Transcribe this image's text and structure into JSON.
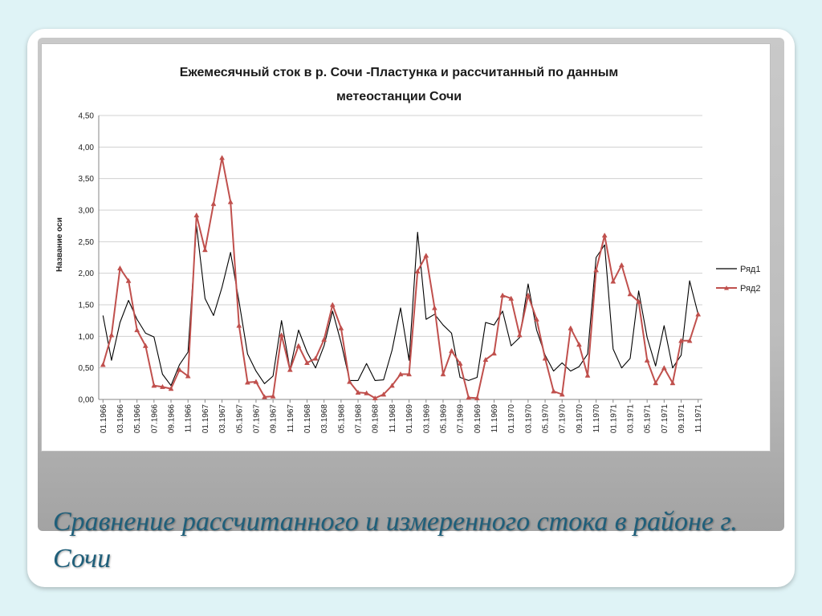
{
  "slide": {
    "caption": "Сравнение рассчитанного и измеренного стока в районе г. Сочи"
  },
  "chart_data": {
    "type": "line",
    "title_lines": [
      "Ежемесячный сток в р. Сочи -Пластунка и рассчитанный по данным",
      "метеостанции Сочи"
    ],
    "ylabel": "Название оси",
    "xlabel": "",
    "ylim": [
      0,
      4.5
    ],
    "yticks": [
      "0,00",
      "0,50",
      "1,00",
      "1,50",
      "2,00",
      "2,50",
      "3,00",
      "3,50",
      "4,00",
      "4,50"
    ],
    "grid": "horizontal",
    "legend_position": "right",
    "x_tick_labels": [
      "01.1966",
      "03.1966",
      "05.1966",
      "07.1966",
      "09.1966",
      "11.1966",
      "01.1967",
      "03.1967",
      "05.1967",
      "07.1967",
      "09.1967",
      "11.1967",
      "01.1968",
      "03.1968",
      "05.1968",
      "07.1968",
      "09.1968",
      "11.1968",
      "01.1969",
      "03.1969",
      "05.1969",
      "07.1969",
      "09.1969",
      "11.1969",
      "01.1970",
      "03.1970",
      "05.1970",
      "07.1970",
      "09.1970",
      "11.1970",
      "01.1971",
      "03.1971",
      "05.1971",
      "07.1971",
      "09.1971",
      "11.1971"
    ],
    "series": [
      {
        "name": "Ряд1",
        "color": "#000000",
        "marker": "none",
        "values": [
          1.33,
          0.62,
          1.22,
          1.57,
          1.27,
          1.05,
          0.99,
          0.4,
          0.22,
          0.55,
          0.75,
          2.75,
          1.6,
          1.33,
          1.78,
          2.33,
          1.55,
          0.72,
          0.45,
          0.25,
          0.37,
          1.25,
          0.48,
          1.1,
          0.75,
          0.5,
          0.85,
          1.4,
          0.9,
          0.3,
          0.3,
          0.57,
          0.3,
          0.31,
          0.78,
          1.45,
          0.62,
          2.65,
          1.27,
          1.35,
          1.18,
          1.05,
          0.35,
          0.3,
          0.35,
          1.22,
          1.18,
          1.4,
          0.85,
          0.98,
          1.83,
          1.1,
          0.7,
          0.45,
          0.58,
          0.45,
          0.52,
          0.72,
          2.25,
          2.45,
          0.8,
          0.5,
          0.65,
          1.72,
          0.98,
          0.53,
          1.17,
          0.5,
          0.7,
          1.88,
          1.35
        ]
      },
      {
        "name": "Ряд2",
        "color": "#c0504d",
        "marker": "triangle",
        "values": [
          0.55,
          1.02,
          2.08,
          1.88,
          1.1,
          0.85,
          0.22,
          0.2,
          0.17,
          0.47,
          0.37,
          2.92,
          2.37,
          3.1,
          3.83,
          3.13,
          1.17,
          0.27,
          0.28,
          0.04,
          0.05,
          1.02,
          0.47,
          0.85,
          0.58,
          0.65,
          0.95,
          1.5,
          1.13,
          0.28,
          0.11,
          0.1,
          0.02,
          0.08,
          0.22,
          0.4,
          0.4,
          2.03,
          2.28,
          1.45,
          0.4,
          0.77,
          0.57,
          0.03,
          0.02,
          0.63,
          0.73,
          1.65,
          1.6,
          1.02,
          1.65,
          1.27,
          0.65,
          0.13,
          0.08,
          1.13,
          0.87,
          0.38,
          2.05,
          2.6,
          1.87,
          2.13,
          1.67,
          1.55,
          0.62,
          0.26,
          0.5,
          0.26,
          0.93,
          0.93,
          1.35
        ]
      }
    ]
  }
}
